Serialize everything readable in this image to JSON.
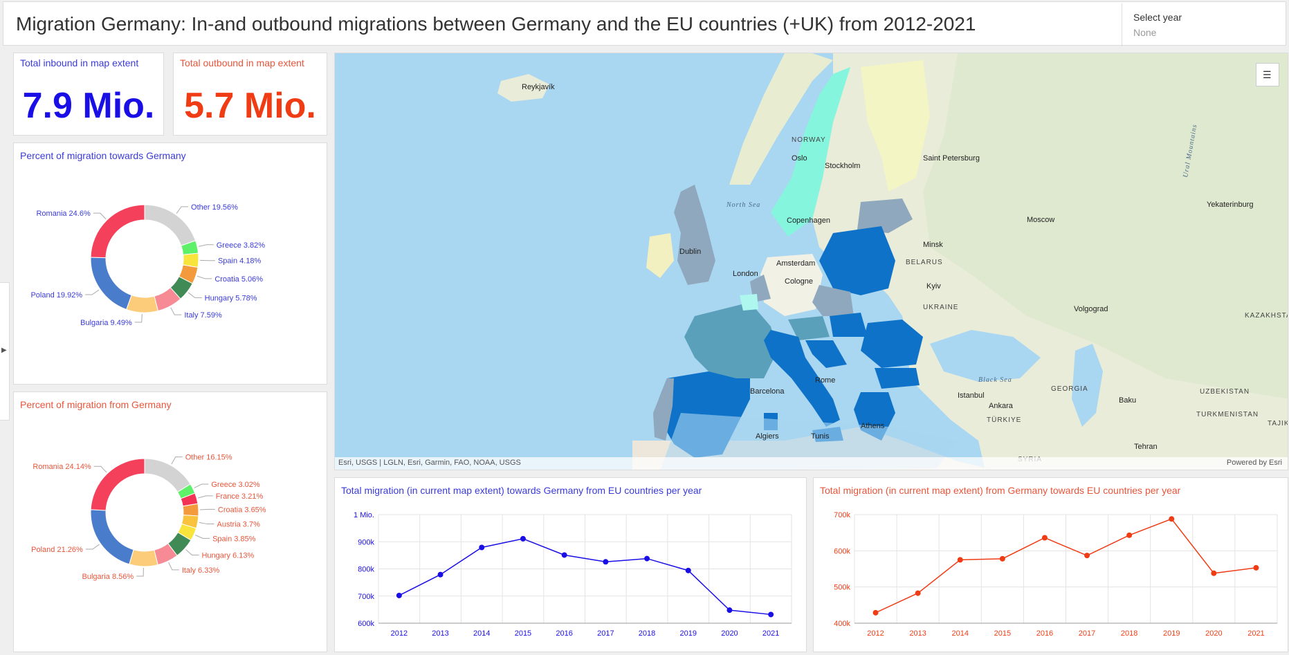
{
  "header": {
    "title": "Migration Germany: In-and outbound migrations between Germany and the EU countries (+UK) from 2012-2021",
    "year_select": {
      "label": "Select year",
      "value": "None"
    }
  },
  "kpis": {
    "inbound": {
      "title": "Total inbound in map extent",
      "value": "7.9 Mio.",
      "color": "#1a0ee6"
    },
    "outbound": {
      "title": "Total outbound in map extent",
      "value": "5.7 Mio.",
      "color": "#f03c14"
    }
  },
  "colors": {
    "inbound": "#1a0ee6",
    "outbound": "#f03c14",
    "inbound_label": "#3a3ad9",
    "outbound_label": "#e8553a"
  },
  "donut_inbound": {
    "title": "Percent of migration towards Germany",
    "slices": [
      {
        "label": "Other 19.56%",
        "value": 19.56,
        "color": "#d3d3d3"
      },
      {
        "label": "Greece 3.82%",
        "value": 3.82,
        "color": "#5ff06a"
      },
      {
        "label": "Spain 4.18%",
        "value": 4.18,
        "color": "#f9e43c"
      },
      {
        "label": "Croatia 5.06%",
        "value": 5.06,
        "color": "#f39a3c"
      },
      {
        "label": "Hungary 5.78%",
        "value": 5.78,
        "color": "#3f8a55"
      },
      {
        "label": "Italy 7.59%",
        "value": 7.59,
        "color": "#f68b95"
      },
      {
        "label": "Bulgaria 9.49%",
        "value": 9.49,
        "color": "#fccc7a"
      },
      {
        "label": "Poland 19.92%",
        "value": 19.92,
        "color": "#4a7ccc"
      },
      {
        "label": "Romania 24.6%",
        "value": 24.6,
        "color": "#f4405a"
      }
    ]
  },
  "donut_outbound": {
    "title": "Percent of migration from Germany",
    "slices": [
      {
        "label": "Other 16.15%",
        "value": 16.15,
        "color": "#d3d3d3"
      },
      {
        "label": "Greece 3.02%",
        "value": 3.02,
        "color": "#5ff06a"
      },
      {
        "label": "France 3.21%",
        "value": 3.21,
        "color": "#f23355"
      },
      {
        "label": "Croatia 3.65%",
        "value": 3.65,
        "color": "#f39a3c"
      },
      {
        "label": "Austria 3.7%",
        "value": 3.7,
        "color": "#f9c23c"
      },
      {
        "label": "Spain 3.85%",
        "value": 3.85,
        "color": "#f9e43c"
      },
      {
        "label": "Hungary 6.13%",
        "value": 6.13,
        "color": "#3f8a55"
      },
      {
        "label": "Italy 6.33%",
        "value": 6.33,
        "color": "#f68b95"
      },
      {
        "label": "Bulgaria 8.56%",
        "value": 8.56,
        "color": "#fccc7a"
      },
      {
        "label": "Poland 21.26%",
        "value": 21.26,
        "color": "#4a7ccc"
      },
      {
        "label": "Romania 24.14%",
        "value": 24.14,
        "color": "#f4405a"
      }
    ]
  },
  "map": {
    "attribution": "Esri, USGS | LGLN, Esri, Garmin, FAO, NOAA, USGS",
    "powered_by": "Powered by Esri",
    "legend_icon": "legend-list-icon",
    "labels": [
      "Reykjavík",
      "NORWAY",
      "Oslo",
      "Stockholm",
      "Saint Petersburg",
      "North Sea",
      "Copenhagen",
      "Moscow",
      "Yekaterinburg",
      "Dublin",
      "Minsk",
      "BELARUS",
      "London",
      "Amsterdam",
      "Cologne",
      "Kyiv",
      "UKRAINE",
      "Volgograd",
      "KAZAKHSTAN",
      "Black Sea",
      "Istanbul",
      "Ankara",
      "TÜRKIYE",
      "GEORGIA",
      "Baku",
      "UZBEKISTAN",
      "TURKMENISTAN",
      "Barcelona",
      "Rome",
      "Athens",
      "Algiers",
      "Tunis",
      "Tehran",
      "Ural Mountains",
      "SYRIA",
      "TAJIK"
    ]
  },
  "chart_data": [
    {
      "type": "line",
      "title": "Total migration (in current map extent) towards Germany from EU countries per year",
      "x": [
        "2012",
        "2013",
        "2014",
        "2015",
        "2016",
        "2017",
        "2018",
        "2019",
        "2020",
        "2021"
      ],
      "series": [
        {
          "values": [
            702000,
            779000,
            879000,
            911000,
            851000,
            826000,
            838000,
            794000,
            648000,
            632000
          ]
        }
      ],
      "yticks": [
        "600k",
        "700k",
        "800k",
        "900k",
        "1 Mio."
      ],
      "ylim": [
        600000,
        1000000
      ],
      "grid": true,
      "color": "#1a0ee6"
    },
    {
      "type": "line",
      "title": "Total migration (in current map extent) from Germany towards EU countries per year",
      "x": [
        "2012",
        "2013",
        "2014",
        "2015",
        "2016",
        "2017",
        "2018",
        "2019",
        "2020",
        "2021"
      ],
      "series": [
        {
          "values": [
            429000,
            483000,
            575000,
            578000,
            636000,
            587000,
            643000,
            688000,
            538000,
            553000
          ]
        }
      ],
      "yticks": [
        "400k",
        "500k",
        "600k",
        "700k"
      ],
      "ylim": [
        400000,
        700000
      ],
      "grid": true,
      "color": "#f03c14"
    }
  ]
}
